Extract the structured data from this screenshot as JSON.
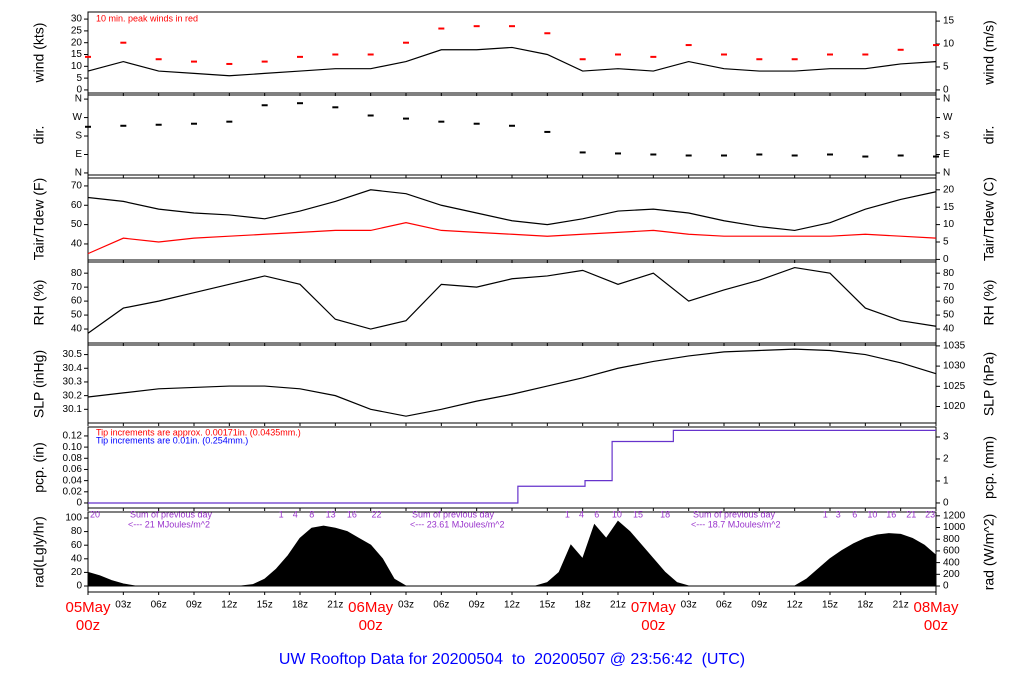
{
  "title": "UW Rooftop Data for 20200504  to  20200507 @ 23:56:42  (UTC)",
  "xaxis": {
    "xlim": [
      0,
      72
    ],
    "xticks": [
      {
        "value": 0,
        "label": "05May",
        "sub": "00z"
      },
      {
        "value": 3,
        "label": "03z"
      },
      {
        "value": 6,
        "label": "06z"
      },
      {
        "value": 9,
        "label": "09z"
      },
      {
        "value": 12,
        "label": "12z"
      },
      {
        "value": 15,
        "label": "15z"
      },
      {
        "value": 18,
        "label": "18z"
      },
      {
        "value": 21,
        "label": "21z"
      },
      {
        "value": 24,
        "label": "06May",
        "sub": "00z"
      },
      {
        "value": 27,
        "label": "03z"
      },
      {
        "value": 30,
        "label": "06z"
      },
      {
        "value": 33,
        "label": "09z"
      },
      {
        "value": 36,
        "label": "12z"
      },
      {
        "value": 39,
        "label": "15z"
      },
      {
        "value": 42,
        "label": "18z"
      },
      {
        "value": 45,
        "label": "21z"
      },
      {
        "value": 48,
        "label": "07May",
        "sub": "00z"
      },
      {
        "value": 51,
        "label": "03z"
      },
      {
        "value": 54,
        "label": "06z"
      },
      {
        "value": 57,
        "label": "09z"
      },
      {
        "value": 60,
        "label": "12z"
      },
      {
        "value": 63,
        "label": "15z"
      },
      {
        "value": 66,
        "label": "18z"
      },
      {
        "value": 69,
        "label": "21z"
      },
      {
        "value": 72,
        "label": "08May",
        "sub": "00z"
      }
    ]
  },
  "chart_data": [
    {
      "type": "line",
      "ylabel": "wind (kts)",
      "y2label": "wind (m/s)",
      "annotation": "10 min. peak winds in red",
      "annotation_color": "#ff0000",
      "ylim": [
        -1.3,
        33
      ],
      "yticks": [
        0,
        5,
        10,
        15,
        20,
        25,
        30
      ],
      "y2lim": [
        -0.67,
        16.98
      ],
      "y2ticks": [
        0,
        5,
        10,
        15
      ],
      "x": [
        0,
        3,
        6,
        9,
        12,
        15,
        18,
        21,
        24,
        27,
        30,
        33,
        36,
        39,
        42,
        45,
        48,
        51,
        54,
        57,
        60,
        63,
        66,
        69,
        72
      ],
      "series": [
        {
          "color": "#000000",
          "style": "line",
          "values": [
            8,
            12,
            8,
            7,
            6,
            7,
            8,
            9,
            9,
            12,
            17,
            17,
            18,
            15,
            8,
            9,
            8,
            12,
            9,
            8,
            8,
            9,
            9,
            11,
            12
          ]
        },
        {
          "color": "#ff0000",
          "style": "dash",
          "values": [
            14,
            20,
            13,
            12,
            11,
            12,
            14,
            15,
            15,
            20,
            26,
            27,
            27,
            24,
            13,
            15,
            14,
            19,
            15,
            13,
            13,
            15,
            15,
            17,
            19
          ]
        }
      ]
    },
    {
      "type": "scatter",
      "ylabel": "dir.",
      "y2label": "dir.",
      "mirror": true,
      "ylim": [
        -10,
        380
      ],
      "yticks": [
        {
          "value": 0,
          "label": "N"
        },
        {
          "value": 90,
          "label": "E"
        },
        {
          "value": 180,
          "label": "S"
        },
        {
          "value": 270,
          "label": "W"
        },
        {
          "value": 360,
          "label": "N"
        }
      ],
      "x": [
        0,
        3,
        6,
        9,
        12,
        15,
        18,
        21,
        24,
        27,
        30,
        33,
        36,
        39,
        42,
        45,
        48,
        51,
        54,
        57,
        60,
        63,
        66,
        69,
        72
      ],
      "series": [
        {
          "color": "#000000",
          "style": "dash",
          "values": [
            225,
            230,
            235,
            240,
            250,
            330,
            340,
            320,
            280,
            265,
            250,
            240,
            230,
            200,
            100,
            95,
            90,
            85,
            85,
            90,
            85,
            90,
            80,
            85,
            80
          ]
        }
      ]
    },
    {
      "type": "line",
      "ylabel": "Tair/Tdew (F)",
      "y2label": "Tair/Tdew (C)",
      "ylim": [
        31.7,
        74.1
      ],
      "yticks": [
        40,
        50,
        60,
        70
      ],
      "y2lim": [
        -0.17,
        23.39
      ],
      "y2ticks": [
        0,
        5,
        10,
        15,
        20
      ],
      "x": [
        0,
        3,
        6,
        9,
        12,
        15,
        18,
        21,
        24,
        27,
        30,
        33,
        36,
        39,
        42,
        45,
        48,
        51,
        54,
        57,
        60,
        63,
        66,
        69,
        72
      ],
      "series": [
        {
          "color": "#000000",
          "style": "line",
          "values": [
            64,
            62,
            58,
            56,
            55,
            53,
            57,
            62,
            68,
            66,
            60,
            56,
            52,
            50,
            53,
            57,
            58,
            56,
            52,
            49,
            47,
            51,
            58,
            63,
            67
          ]
        },
        {
          "color": "#ff0000",
          "style": "line",
          "values": [
            35,
            43,
            41,
            43,
            44,
            45,
            46,
            47,
            47,
            51,
            47,
            46,
            45,
            44,
            45,
            46,
            47,
            45,
            44,
            44,
            44,
            44,
            45,
            44,
            43
          ]
        }
      ]
    },
    {
      "type": "line",
      "ylabel": "RH (%)",
      "y2label": "RH (%)",
      "mirror": true,
      "ylim": [
        30,
        88
      ],
      "yticks": [
        40,
        50,
        60,
        70,
        80
      ],
      "x": [
        0,
        3,
        6,
        9,
        12,
        15,
        18,
        21,
        24,
        27,
        30,
        33,
        36,
        39,
        42,
        45,
        48,
        51,
        54,
        57,
        60,
        63,
        66,
        69,
        72
      ],
      "series": [
        {
          "color": "#000000",
          "style": "line",
          "values": [
            37,
            55,
            60,
            66,
            72,
            78,
            72,
            47,
            40,
            46,
            72,
            70,
            76,
            78,
            82,
            72,
            80,
            60,
            68,
            75,
            84,
            80,
            55,
            46,
            42
          ]
        }
      ]
    },
    {
      "type": "line",
      "ylabel": "SLP (inHg)",
      "y2label": "SLP (hPa)",
      "ylim": [
        30.0,
        30.57
      ],
      "yticks": [
        30.1,
        30.2,
        30.3,
        30.4,
        30.5
      ],
      "y2lim": [
        1015.92,
        1035.22
      ],
      "y2ticks": [
        1020,
        1025,
        1030,
        1035
      ],
      "x": [
        0,
        3,
        6,
        9,
        12,
        15,
        18,
        21,
        24,
        27,
        30,
        33,
        36,
        39,
        42,
        45,
        48,
        51,
        54,
        57,
        60,
        63,
        66,
        69,
        72
      ],
      "series": [
        {
          "color": "#000000",
          "style": "line",
          "values": [
            30.19,
            30.22,
            30.25,
            30.26,
            30.27,
            30.27,
            30.25,
            30.2,
            30.1,
            30.05,
            30.1,
            30.16,
            30.21,
            30.27,
            30.33,
            30.4,
            30.45,
            30.49,
            30.52,
            30.53,
            30.54,
            30.53,
            30.5,
            30.44,
            30.36
          ]
        }
      ]
    },
    {
      "type": "line",
      "ylabel": "pcp. (in)",
      "y2label": "pcp. (mm)",
      "annotations": [
        {
          "text": "Tip increments are approx. 0.00171in. (0.0435mm.)",
          "color": "#ff0000"
        },
        {
          "text": "Tip increments are 0.01in. (0.254mm.)",
          "color": "#0000ff"
        }
      ],
      "ylim": [
        -0.009,
        0.136
      ],
      "yticks": [
        0,
        0.02,
        0.04,
        0.06,
        0.08,
        {
          "value": 0.1,
          "label": "0.10"
        },
        0.12
      ],
      "y2lim": [
        -0.229,
        3.454
      ],
      "y2ticks": [
        0,
        1,
        2,
        3
      ],
      "x": [
        0,
        36.5,
        36.5,
        42.2,
        42.2,
        44.5,
        44.5,
        49.7,
        49.7,
        72
      ],
      "series": [
        {
          "color": "#6633cc",
          "style": "line",
          "values": [
            0,
            0,
            0.03,
            0.03,
            0.04,
            0.04,
            0.11,
            0.11,
            0.13,
            0.13
          ]
        }
      ]
    },
    {
      "type": "area",
      "ylabel": "rad(Lgly/hr)",
      "y2label": "rad (W/m^2)",
      "ylim": [
        -8.8,
        108.8
      ],
      "yticks": [
        0,
        20,
        40,
        60,
        80,
        100
      ],
      "y2lim": [
        -102.3,
        1265.3
      ],
      "y2ticks": [
        0,
        200,
        400,
        600,
        800,
        1000,
        1200
      ],
      "x": [
        0,
        1,
        2,
        3,
        4,
        5,
        6,
        7,
        8,
        9,
        10,
        11,
        12,
        13,
        14,
        15,
        16,
        17,
        18,
        19,
        20,
        21,
        22,
        23,
        24,
        25,
        26,
        27,
        28,
        29,
        30,
        31,
        32,
        33,
        34,
        35,
        36,
        37,
        38,
        39,
        40,
        41,
        42,
        43,
        44,
        45,
        46,
        47,
        48,
        49,
        50,
        51,
        52,
        53,
        54,
        55,
        56,
        57,
        58,
        59,
        60,
        61,
        62,
        63,
        64,
        65,
        66,
        67,
        68,
        69,
        70,
        71,
        72
      ],
      "series": [
        {
          "color": "#000000",
          "style": "area",
          "values": [
            20,
            15,
            8,
            3,
            0,
            0,
            0,
            0,
            0,
            0,
            0,
            0,
            0,
            0,
            2,
            10,
            25,
            45,
            70,
            85,
            88,
            85,
            80,
            70,
            60,
            40,
            10,
            0,
            0,
            0,
            0,
            0,
            0,
            0,
            0,
            0,
            0,
            0,
            0,
            5,
            20,
            60,
            40,
            90,
            70,
            95,
            80,
            60,
            40,
            20,
            5,
            0,
            0,
            0,
            0,
            0,
            0,
            0,
            0,
            0,
            0,
            10,
            25,
            40,
            52,
            62,
            70,
            75,
            77,
            76,
            70,
            60,
            45
          ]
        }
      ],
      "hour_marks": [
        {
          "x": 0.6,
          "label": "20"
        },
        {
          "x": 16.4,
          "label": "1"
        },
        {
          "x": 17.6,
          "label": "4"
        },
        {
          "x": 19,
          "label": "8"
        },
        {
          "x": 20.6,
          "label": "13"
        },
        {
          "x": 22.4,
          "label": "16"
        },
        {
          "x": 24.5,
          "label": "22"
        },
        {
          "x": 40.7,
          "label": "1"
        },
        {
          "x": 41.9,
          "label": "4"
        },
        {
          "x": 43.2,
          "label": "6"
        },
        {
          "x": 44.9,
          "label": "10"
        },
        {
          "x": 46.7,
          "label": "15"
        },
        {
          "x": 49,
          "label": "18"
        },
        {
          "x": 62.6,
          "label": "1"
        },
        {
          "x": 63.7,
          "label": "3"
        },
        {
          "x": 65.1,
          "label": "6"
        },
        {
          "x": 66.6,
          "label": "10"
        },
        {
          "x": 68.2,
          "label": "16"
        },
        {
          "x": 69.9,
          "label": "21"
        },
        {
          "x": 71.5,
          "label": "23"
        }
      ],
      "daily_sums": [
        {
          "heading": "Sum of previous day",
          "text": "<--- 21 MJoules/m^2"
        },
        {
          "heading": "Sum of previous day",
          "text": "<--- 23.61 MJoules/m^2"
        },
        {
          "heading": "Sum of previous day",
          "text": "<--- 18.7 MJoules/m^2"
        }
      ]
    }
  ]
}
